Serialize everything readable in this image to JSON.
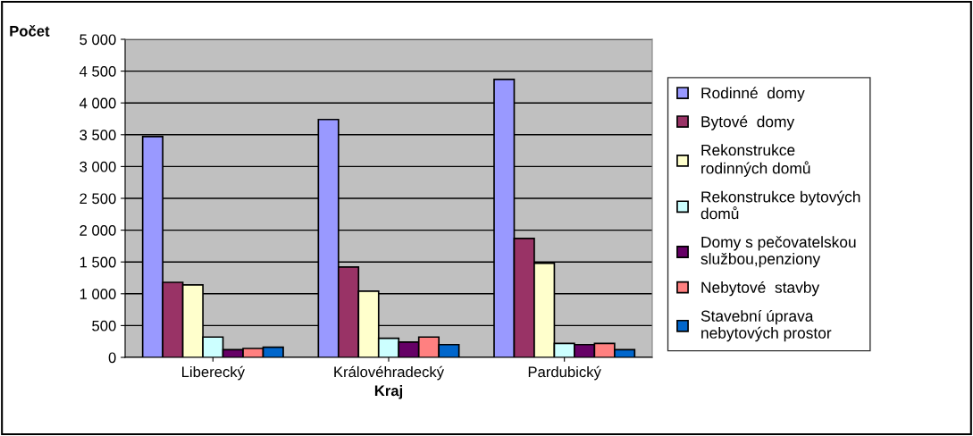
{
  "chart_data": {
    "type": "bar",
    "ylabel": "Počet",
    "xlabel": "Kraj",
    "categories": [
      "Liberecký",
      "Královéhradecký",
      "Pardubický"
    ],
    "series": [
      {
        "name": "Rodinné  domy",
        "color": "#9999ff",
        "values": [
          3470,
          3740,
          4370
        ]
      },
      {
        "name": "Bytové  domy",
        "color": "#993366",
        "values": [
          1180,
          1420,
          1870
        ]
      },
      {
        "name": "Rekonstrukce\nrodinných domů",
        "color": "#ffffcc",
        "values": [
          1140,
          1040,
          1480
        ]
      },
      {
        "name": "Rekonstrukce bytových\ndomů",
        "color": "#ccffff",
        "values": [
          320,
          300,
          220
        ]
      },
      {
        "name": "Domy s pečovatelskou\nslužbou,penziony",
        "color": "#660066",
        "values": [
          120,
          240,
          200
        ]
      },
      {
        "name": "Nebytové  stavby",
        "color": "#ff8080",
        "values": [
          140,
          320,
          220
        ]
      },
      {
        "name": "Stavební úprava\nnebytových prostor",
        "color": "#0066cc",
        "values": [
          160,
          200,
          120
        ]
      }
    ],
    "ylim": [
      0,
      5000
    ],
    "yticks": [
      0,
      500,
      {
        "value": 1000,
        "label": "1 000"
      },
      {
        "value": 1500,
        "label": "1 500"
      },
      {
        "value": 2000,
        "label": "2 000"
      },
      {
        "value": 2500,
        "label": "2 500"
      },
      {
        "value": 3000,
        "label": "3 000"
      },
      {
        "value": 3500,
        "label": "3 500"
      },
      {
        "value": 4000,
        "label": "4 000"
      },
      {
        "value": 4500,
        "label": "4 500"
      },
      {
        "value": 5000,
        "label": "5 000"
      }
    ],
    "grid": "y",
    "legend": "right"
  }
}
